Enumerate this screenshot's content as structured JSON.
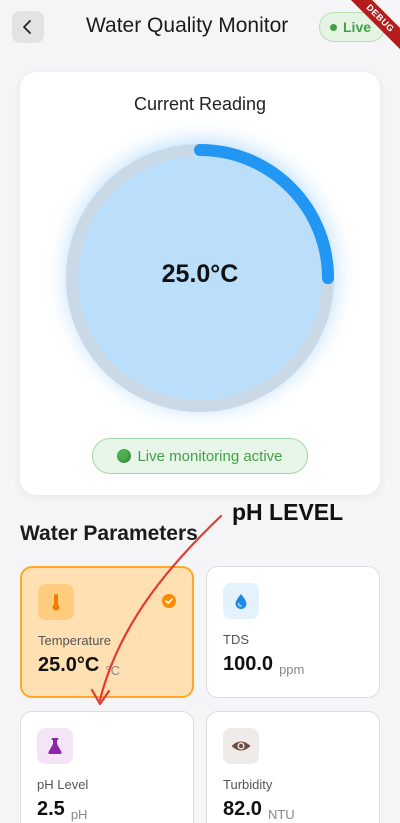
{
  "appbar": {
    "title": "Water Quality Monitor",
    "live_label": "Live",
    "back_icon": "chevron-left-icon"
  },
  "debug_banner": "DEBUG",
  "reading": {
    "title": "Current Reading",
    "value": "25.0°C",
    "progress_fraction": 0.25,
    "status_text": "Live monitoring active",
    "status_icon": "green-circle-icon"
  },
  "section_title": "Water Parameters",
  "parameters": [
    {
      "label": "Temperature",
      "value": "25.0°C",
      "unit": "°C",
      "icon": "thermometer-icon",
      "selected": true
    },
    {
      "label": "TDS",
      "value": "100.0",
      "unit": "ppm",
      "icon": "water-drop-icon",
      "selected": false
    },
    {
      "label": "pH Level",
      "value": "2.5",
      "unit": "pH",
      "icon": "flask-icon",
      "selected": false
    },
    {
      "label": "Turbidity",
      "value": "82.0",
      "unit": "NTU",
      "icon": "eye-icon",
      "selected": false
    }
  ],
  "annotation": "pH LEVEL",
  "colors": {
    "accent_blue": "#2196f3",
    "live_green": "#43a047",
    "selected_orange": "#ffa726",
    "annotation_red": "#e53935"
  }
}
